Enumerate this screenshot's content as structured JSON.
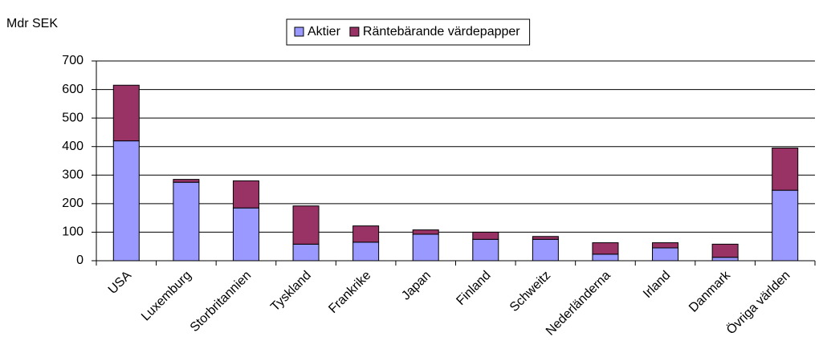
{
  "chart_data": {
    "type": "stacked_bar",
    "y_label": "Mdr SEK",
    "categories": [
      "USA",
      "Luxemburg",
      "Storbritannien",
      "Tyskland",
      "Frankrike",
      "Japan",
      "Finland",
      "Schweitz",
      "Nederländerna",
      "Irland",
      "Danmark",
      "Övriga världen"
    ],
    "series": [
      {
        "name": "Aktier",
        "color": "#9999ff",
        "values": [
          420,
          275,
          185,
          58,
          65,
          93,
          75,
          75,
          23,
          45,
          12,
          247
        ]
      },
      {
        "name": "Räntebärande värdepapper",
        "color": "#993366",
        "values": [
          195,
          10,
          95,
          134,
          57,
          15,
          25,
          10,
          40,
          18,
          46,
          148
        ]
      }
    ],
    "ylim": [
      0,
      700
    ],
    "yticks": [
      0,
      100,
      200,
      300,
      400,
      500,
      600,
      700
    ],
    "grid": true,
    "legend": "top"
  }
}
